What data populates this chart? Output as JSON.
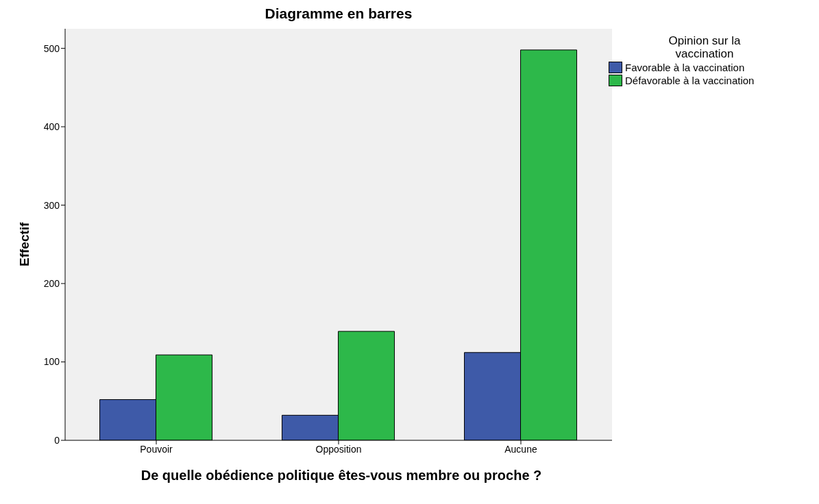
{
  "chart_data": {
    "type": "bar",
    "title": "Diagramme en barres",
    "xlabel": "De quelle obédience politique êtes-vous membre ou proche ?",
    "ylabel": "Effectif",
    "legend_title": "Opinion sur la vaccination",
    "categories": [
      "Pouvoir",
      "Opposition",
      "Aucune"
    ],
    "series": [
      {
        "name": "Favorable à la vaccination",
        "color": "#3e5aa8",
        "values": [
          52,
          32,
          112
        ]
      },
      {
        "name": "Défavorable à la vaccination",
        "color": "#2db84a",
        "values": [
          109,
          139,
          498
        ]
      }
    ],
    "ylim": [
      0,
      525
    ],
    "yticks": [
      0,
      100,
      200,
      300,
      400,
      500
    ],
    "grid": false,
    "legend": "right"
  }
}
